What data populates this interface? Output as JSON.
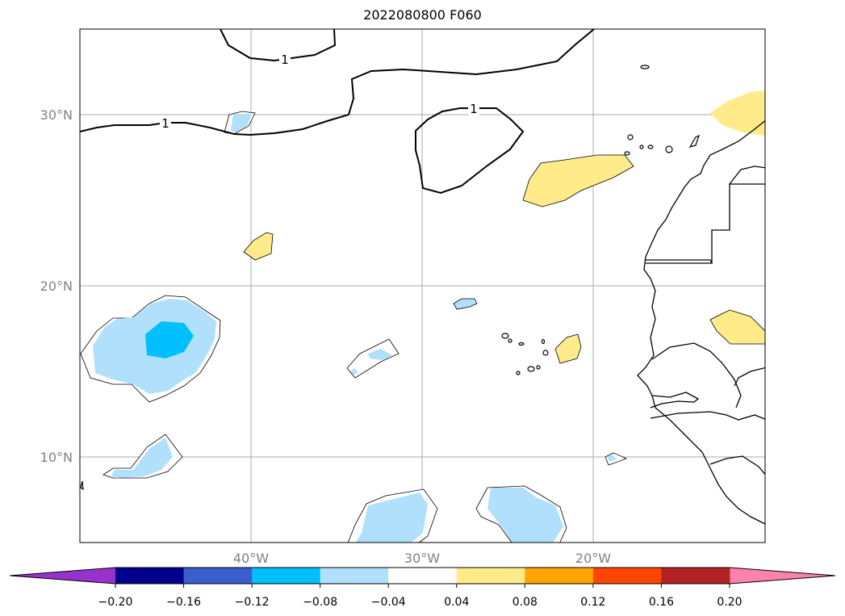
{
  "title": "2022080800 F060",
  "map": {
    "lat_labels": [
      "30°N",
      "20°N",
      "10°N"
    ],
    "lon_labels": [
      "40°W",
      "30°W",
      "20°W"
    ],
    "contour_label": "1"
  },
  "colorbar": {
    "ticks": [
      "−0.20",
      "−0.16",
      "−0.12",
      "−0.08",
      "−0.04",
      "0.04",
      "0.08",
      "0.12",
      "0.16",
      "0.20"
    ],
    "colors": [
      "#9932cc",
      "#00008b",
      "#3a5fcd",
      "#00bfff",
      "#b0e0fb",
      "#ffffff",
      "#ffeb8a",
      "#ffa500",
      "#ff4500",
      "#b22222",
      "#ff82ab"
    ],
    "extend": "both"
  }
}
